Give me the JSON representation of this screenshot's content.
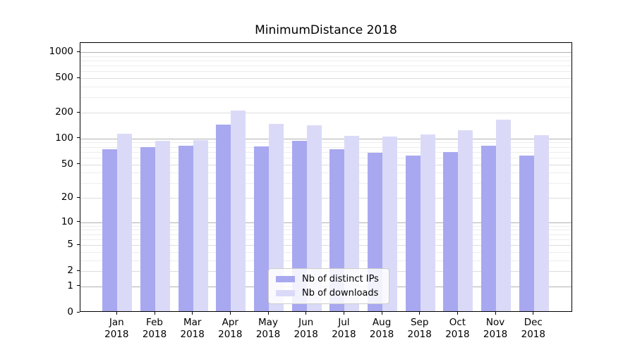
{
  "chart_data": {
    "type": "bar",
    "title": "MinimumDistance 2018",
    "categories": [
      "Jan",
      "Feb",
      "Mar",
      "Apr",
      "May",
      "Jun",
      "Jul",
      "Aug",
      "Sep",
      "Oct",
      "Nov",
      "Dec"
    ],
    "year_label": "2018",
    "series": [
      {
        "name": "Nb of distinct IPs",
        "color": "#a8a8f0",
        "values": [
          72,
          76,
          79,
          140,
          78,
          90,
          73,
          66,
          61,
          67,
          79,
          61
        ]
      },
      {
        "name": "Nb of downloads",
        "color": "#dadaf8",
        "values": [
          110,
          90,
          92,
          205,
          142,
          137,
          104,
          102,
          108,
          120,
          160,
          106
        ]
      }
    ],
    "xlabel": "",
    "ylabel": "",
    "y_scale": "log1p",
    "ylim": [
      0,
      1276
    ],
    "y_ticks": [
      0,
      1,
      2,
      5,
      10,
      20,
      50,
      100,
      200,
      500,
      1000
    ],
    "grid": {
      "on": true,
      "major_lines": [
        1,
        10,
        100,
        1000
      ],
      "labeled_minor_lines": [
        2,
        5,
        20,
        50,
        200,
        500
      ],
      "minor_lines": [
        3,
        4,
        6,
        7,
        8,
        9,
        30,
        40,
        60,
        70,
        80,
        90,
        300,
        400,
        600,
        700,
        800,
        900
      ]
    },
    "legend_position": "lower-center-inside"
  },
  "colors": {
    "bar_ips": "#a8a8f0",
    "bar_downloads": "#dadaf8",
    "grid_major": "#b0b0b0",
    "grid_labeled_minor": "#dcdcdc",
    "grid_minor": "#ededed",
    "spine": "#000000",
    "legend_border": "#cccccc",
    "background": "#ffffff"
  }
}
